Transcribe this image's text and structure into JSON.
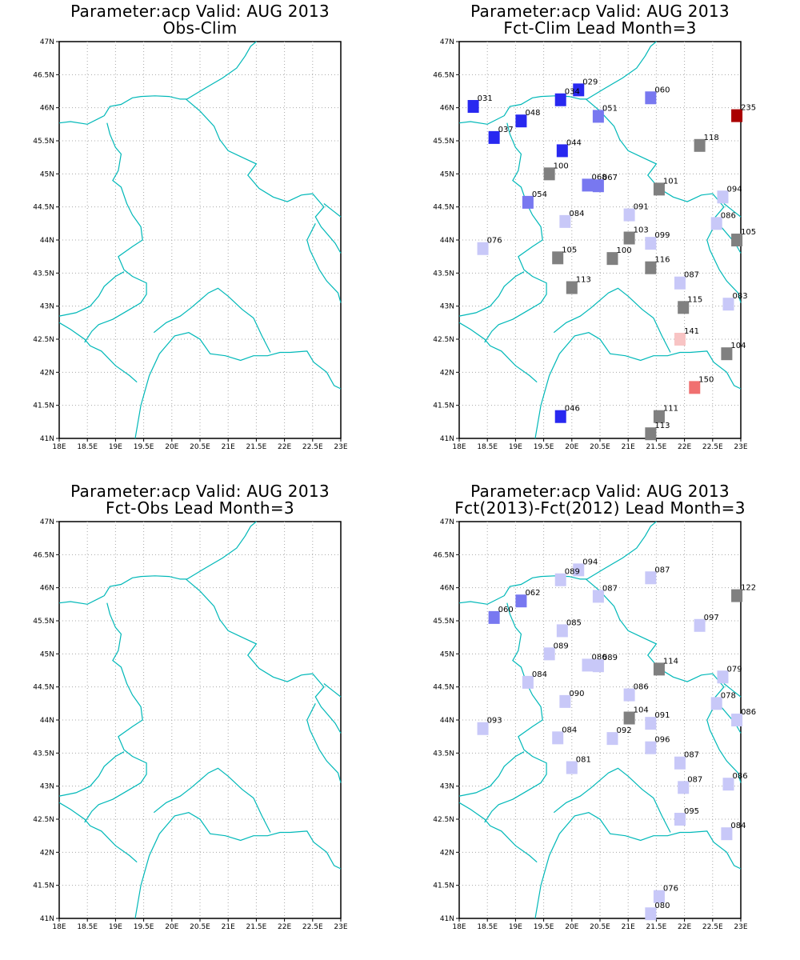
{
  "axes": {
    "lon_ticks": [
      "18E",
      "18.5E",
      "19E",
      "19.5E",
      "20E",
      "20.5E",
      "21E",
      "21.5E",
      "22E",
      "22.5E",
      "23E"
    ],
    "lat_ticks": [
      "41N",
      "41.5N",
      "42N",
      "42.5N",
      "43N",
      "43.5N",
      "44N",
      "44.5N",
      "45N",
      "45.5N",
      "46N",
      "46.5N",
      "47N"
    ],
    "lon_range": [
      18,
      23
    ],
    "lat_range": [
      41,
      47
    ],
    "grid": "dotted"
  },
  "colors": {
    "border": "#00b8b8",
    "dark_red": "#aa0000",
    "red": "#f07070",
    "light_red": "#f8c4c4",
    "gray": "#808080",
    "light_blue": "#c8c8f8",
    "mid_blue": "#7878f0",
    "blue": "#2828f0"
  },
  "panels": [
    {
      "title1": "Parameter:acp Valid: AUG 2013",
      "title2": "Obs-Clim",
      "stations": []
    },
    {
      "title1": "Parameter:acp Valid: AUG 2013",
      "title2": "Fct-Clim Lead Month=3",
      "stations": [
        {
          "lon": 18.25,
          "lat": 46.02,
          "label": "031",
          "c": "blue"
        },
        {
          "lon": 19.1,
          "lat": 45.8,
          "label": "048",
          "c": "blue"
        },
        {
          "lon": 18.62,
          "lat": 45.55,
          "label": "037",
          "c": "blue"
        },
        {
          "lon": 20.12,
          "lat": 46.27,
          "label": "029",
          "c": "blue"
        },
        {
          "lon": 19.8,
          "lat": 46.12,
          "label": "034",
          "c": "blue"
        },
        {
          "lon": 20.47,
          "lat": 45.87,
          "label": "051",
          "c": "mid_blue"
        },
        {
          "lon": 21.4,
          "lat": 46.15,
          "label": "060",
          "c": "mid_blue"
        },
        {
          "lon": 22.93,
          "lat": 45.88,
          "label": "235",
          "c": "dark_red"
        },
        {
          "lon": 19.83,
          "lat": 45.35,
          "label": "044",
          "c": "blue"
        },
        {
          "lon": 22.27,
          "lat": 45.43,
          "label": "118",
          "c": "gray"
        },
        {
          "lon": 19.6,
          "lat": 45.0,
          "label": "100",
          "c": "gray"
        },
        {
          "lon": 20.28,
          "lat": 44.83,
          "label": "068",
          "c": "mid_blue"
        },
        {
          "lon": 20.47,
          "lat": 44.82,
          "label": "067",
          "c": "mid_blue"
        },
        {
          "lon": 21.55,
          "lat": 44.77,
          "label": "101",
          "c": "gray"
        },
        {
          "lon": 22.68,
          "lat": 44.65,
          "label": "094",
          "c": "light_blue"
        },
        {
          "lon": 19.22,
          "lat": 44.57,
          "label": "054",
          "c": "mid_blue"
        },
        {
          "lon": 19.88,
          "lat": 44.28,
          "label": "084",
          "c": "light_blue"
        },
        {
          "lon": 21.02,
          "lat": 44.38,
          "label": "091",
          "c": "light_blue"
        },
        {
          "lon": 22.57,
          "lat": 44.25,
          "label": "086",
          "c": "light_blue"
        },
        {
          "lon": 21.02,
          "lat": 44.03,
          "label": "103",
          "c": "gray"
        },
        {
          "lon": 21.4,
          "lat": 43.95,
          "label": "099",
          "c": "light_blue"
        },
        {
          "lon": 22.93,
          "lat": 44.0,
          "label": "105",
          "c": "gray"
        },
        {
          "lon": 18.42,
          "lat": 43.87,
          "label": "076",
          "c": "light_blue"
        },
        {
          "lon": 19.75,
          "lat": 43.73,
          "label": "105",
          "c": "gray"
        },
        {
          "lon": 20.72,
          "lat": 43.72,
          "label": "100",
          "c": "gray"
        },
        {
          "lon": 21.4,
          "lat": 43.58,
          "label": "116",
          "c": "gray"
        },
        {
          "lon": 21.92,
          "lat": 43.35,
          "label": "087",
          "c": "light_blue"
        },
        {
          "lon": 20.0,
          "lat": 43.28,
          "label": "113",
          "c": "gray"
        },
        {
          "lon": 21.98,
          "lat": 42.98,
          "label": "115",
          "c": "gray"
        },
        {
          "lon": 22.78,
          "lat": 43.03,
          "label": "083",
          "c": "light_blue"
        },
        {
          "lon": 21.92,
          "lat": 42.5,
          "label": "141",
          "c": "light_red"
        },
        {
          "lon": 22.75,
          "lat": 42.28,
          "label": "104",
          "c": "gray"
        },
        {
          "lon": 22.18,
          "lat": 41.77,
          "label": "150",
          "c": "red"
        },
        {
          "lon": 19.8,
          "lat": 41.33,
          "label": "046",
          "c": "blue"
        },
        {
          "lon": 21.55,
          "lat": 41.33,
          "label": "111",
          "c": "gray"
        },
        {
          "lon": 21.4,
          "lat": 41.07,
          "label": "113",
          "c": "gray"
        }
      ]
    },
    {
      "title1": "Parameter:acp Valid: AUG 2013",
      "title2": "Fct-Obs Lead Month=3",
      "stations": []
    },
    {
      "title1": "Parameter:acp Valid: AUG 2013",
      "title2": "Fct(2013)-Fct(2012) Lead Month=3",
      "stations": [
        {
          "lon": 19.1,
          "lat": 45.8,
          "label": "062",
          "c": "mid_blue"
        },
        {
          "lon": 18.62,
          "lat": 45.55,
          "label": "060",
          "c": "mid_blue"
        },
        {
          "lon": 20.12,
          "lat": 46.27,
          "label": "094",
          "c": "light_blue"
        },
        {
          "lon": 19.8,
          "lat": 46.12,
          "label": "089",
          "c": "light_blue"
        },
        {
          "lon": 20.47,
          "lat": 45.87,
          "label": "087",
          "c": "light_blue"
        },
        {
          "lon": 21.4,
          "lat": 46.15,
          "label": "087",
          "c": "light_blue"
        },
        {
          "lon": 22.93,
          "lat": 45.88,
          "label": "122",
          "c": "gray"
        },
        {
          "lon": 19.83,
          "lat": 45.35,
          "label": "085",
          "c": "light_blue"
        },
        {
          "lon": 22.27,
          "lat": 45.43,
          "label": "097",
          "c": "light_blue"
        },
        {
          "lon": 19.6,
          "lat": 45.0,
          "label": "089",
          "c": "light_blue"
        },
        {
          "lon": 20.28,
          "lat": 44.83,
          "label": "086",
          "c": "light_blue"
        },
        {
          "lon": 20.47,
          "lat": 44.82,
          "label": "089",
          "c": "light_blue"
        },
        {
          "lon": 21.55,
          "lat": 44.77,
          "label": "114",
          "c": "gray"
        },
        {
          "lon": 22.68,
          "lat": 44.65,
          "label": "079",
          "c": "light_blue"
        },
        {
          "lon": 19.22,
          "lat": 44.57,
          "label": "084",
          "c": "light_blue"
        },
        {
          "lon": 21.02,
          "lat": 44.38,
          "label": "086",
          "c": "light_blue"
        },
        {
          "lon": 19.88,
          "lat": 44.28,
          "label": "090",
          "c": "light_blue"
        },
        {
          "lon": 22.57,
          "lat": 44.25,
          "label": "078",
          "c": "light_blue"
        },
        {
          "lon": 21.02,
          "lat": 44.03,
          "label": "104",
          "c": "gray"
        },
        {
          "lon": 21.4,
          "lat": 43.95,
          "label": "091",
          "c": "light_blue"
        },
        {
          "lon": 22.93,
          "lat": 44.0,
          "label": "086",
          "c": "light_blue"
        },
        {
          "lon": 18.42,
          "lat": 43.87,
          "label": "093",
          "c": "light_blue"
        },
        {
          "lon": 19.75,
          "lat": 43.73,
          "label": "084",
          "c": "light_blue"
        },
        {
          "lon": 20.72,
          "lat": 43.72,
          "label": "092",
          "c": "light_blue"
        },
        {
          "lon": 21.4,
          "lat": 43.58,
          "label": "096",
          "c": "light_blue"
        },
        {
          "lon": 21.92,
          "lat": 43.35,
          "label": "087",
          "c": "light_blue"
        },
        {
          "lon": 20.0,
          "lat": 43.28,
          "label": "081",
          "c": "light_blue"
        },
        {
          "lon": 21.98,
          "lat": 42.98,
          "label": "087",
          "c": "light_blue"
        },
        {
          "lon": 22.78,
          "lat": 43.03,
          "label": "086",
          "c": "light_blue"
        },
        {
          "lon": 21.92,
          "lat": 42.5,
          "label": "095",
          "c": "light_blue"
        },
        {
          "lon": 22.75,
          "lat": 42.28,
          "label": "084",
          "c": "light_blue"
        },
        {
          "lon": 21.55,
          "lat": 41.33,
          "label": "076",
          "c": "light_blue"
        },
        {
          "lon": 21.4,
          "lat": 41.07,
          "label": "080",
          "c": "light_blue"
        }
      ]
    }
  ]
}
